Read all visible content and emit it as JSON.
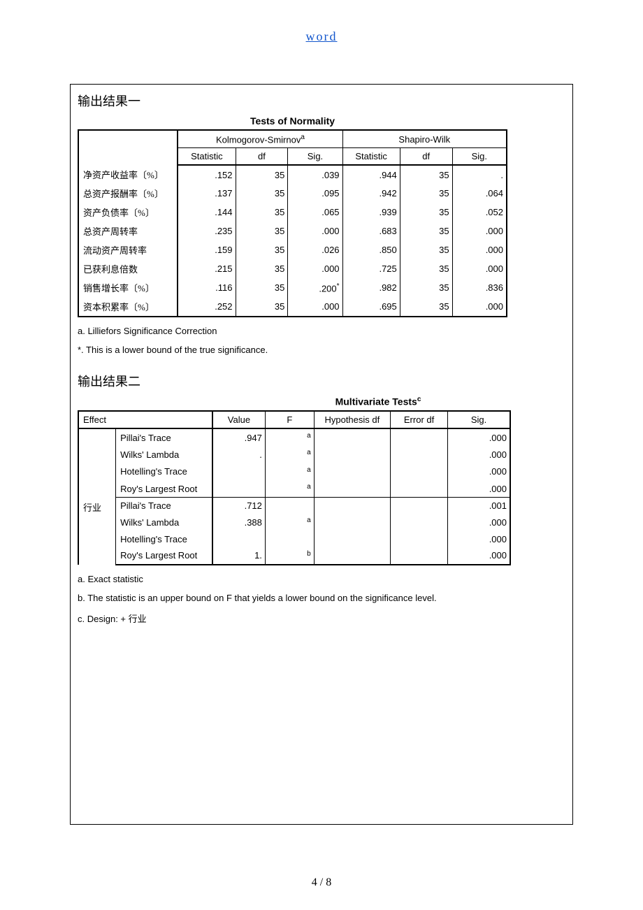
{
  "header_link": "word",
  "section1_title": "输出结果一",
  "section2_title": "输出结果二",
  "page_num": "4 / 8",
  "table1": {
    "title": "Tests of Normality",
    "group1": "Kolmogorov-Smirnov",
    "group1_sup": "a",
    "group2": "Shapiro-Wilk",
    "sub_headers": [
      "Statistic",
      "df",
      "Sig.",
      "Statistic",
      "df",
      "Sig."
    ],
    "rows": [
      {
        "label": "净资产收益率〔%〕",
        "v": [
          ".152",
          "35",
          ".039",
          ".944",
          "35",
          "."
        ]
      },
      {
        "label": "总资产报酬率〔%〕",
        "v": [
          ".137",
          "35",
          ".095",
          ".942",
          "35",
          ".064"
        ]
      },
      {
        "label": "资产负债率〔%〕",
        "v": [
          ".144",
          "35",
          ".065",
          ".939",
          "35",
          ".052"
        ]
      },
      {
        "label": "总资产周转率",
        "v": [
          ".235",
          "35",
          ".000",
          ".683",
          "35",
          ".000"
        ]
      },
      {
        "label": "流动资产周转率",
        "v": [
          ".159",
          "35",
          ".026",
          ".850",
          "35",
          ".000"
        ]
      },
      {
        "label": "已获利息倍数",
        "v": [
          ".215",
          "35",
          ".000",
          ".725",
          "35",
          ".000"
        ]
      },
      {
        "label": "销售增长率〔%〕",
        "v": [
          ".116",
          "35",
          ".200*",
          ".982",
          "35",
          ".836"
        ]
      },
      {
        "label": "资本积累率〔%〕",
        "v": [
          ".252",
          "35",
          ".000",
          ".695",
          "35",
          ".000"
        ]
      }
    ],
    "footnotes": [
      "a. Lilliefors Significance Correction",
      "*. This is a lower bound of the true significance."
    ]
  },
  "table2": {
    "title": "Multivariate Tests",
    "title_sup": "c",
    "headers": [
      "Effect",
      "Value",
      "F",
      "Hypothesis df",
      "Error df",
      "Sig."
    ],
    "groups": [
      {
        "effect": "",
        "rows": [
          {
            "stat": "Pillai's Trace",
            "value": ".947",
            "f_sup": "a",
            "hdf": "",
            "edf": "",
            "sig": ".000"
          },
          {
            "stat": "Wilks' Lambda",
            "value": ".",
            "f_sup": "a",
            "hdf": "",
            "edf": "",
            "sig": ".000"
          },
          {
            "stat": "Hotelling's Trace",
            "value": "",
            "f_sup": "a",
            "hdf": "",
            "edf": "",
            "sig": ".000"
          },
          {
            "stat": "Roy's Largest Root",
            "value": "",
            "f_sup": "a",
            "hdf": "",
            "edf": "",
            "sig": ".000"
          }
        ]
      },
      {
        "effect": "行业",
        "rows": [
          {
            "stat": "Pillai's Trace",
            "value": ".712",
            "f_sup": "",
            "hdf": "",
            "edf": "",
            "sig": ".001"
          },
          {
            "stat": "Wilks' Lambda",
            "value": ".388",
            "f_sup": "a",
            "hdf": "",
            "edf": "",
            "sig": ".000"
          },
          {
            "stat": "Hotelling's Trace",
            "value": "",
            "f_sup": "",
            "hdf": "",
            "edf": "",
            "sig": ".000"
          },
          {
            "stat": "Roy's Largest Root",
            "value": "1.",
            "f_sup": "b",
            "hdf": "",
            "edf": "",
            "sig": ".000"
          }
        ]
      }
    ],
    "footnotes": [
      "a. Exact statistic",
      "b. The statistic is an upper bound on F that yields a lower bound on the significance level.",
      "c. Design:   + 行业"
    ]
  }
}
